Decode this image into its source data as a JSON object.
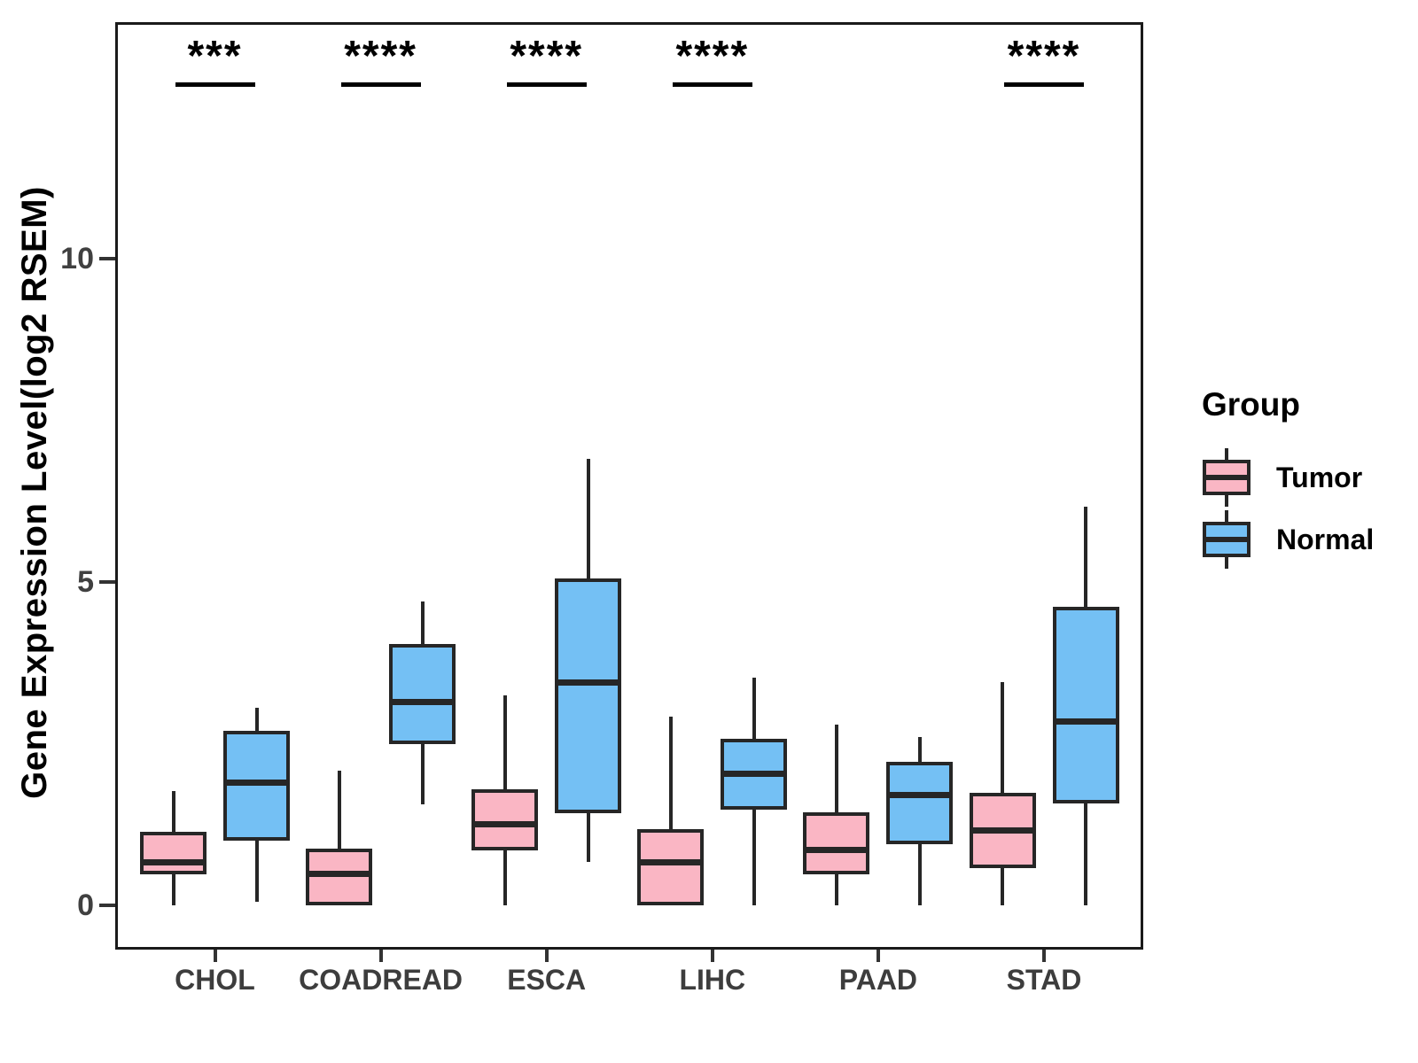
{
  "chart_data": {
    "type": "grouped_boxplot",
    "title": "",
    "xlabel": "",
    "ylabel": "Gene Expression Level(log2 RSEM)",
    "categories": [
      "CHOL",
      "COADREAD",
      "ESCA",
      "LIHC",
      "PAAD",
      "STAD"
    ],
    "yticks": [
      0,
      5,
      10
    ],
    "ylim": [
      -0.7,
      13.7
    ],
    "grid": false,
    "legend": {
      "title": "Group",
      "position": "right",
      "entries": [
        {
          "label": "Tumor",
          "color": "#FAB6C4"
        },
        {
          "label": "Normal",
          "color": "#74C0F4"
        }
      ]
    },
    "significance": [
      {
        "category": "CHOL",
        "stars": "***"
      },
      {
        "category": "COADREAD",
        "stars": "****"
      },
      {
        "category": "ESCA",
        "stars": "****"
      },
      {
        "category": "LIHC",
        "stars": "****"
      },
      {
        "category": "STAD",
        "stars": "****"
      }
    ],
    "series": [
      {
        "name": "Tumor",
        "color": "#FAB6C4",
        "boxes": [
          {
            "category": "CHOL",
            "min": 0,
            "q1": 0.48,
            "median": 0.67,
            "q3": 1.14,
            "max": 1.77
          },
          {
            "category": "COADREAD",
            "min": 0,
            "q1": 0,
            "median": 0.48,
            "q3": 0.88,
            "max": 2.08
          },
          {
            "category": "ESCA",
            "min": 0,
            "q1": 0.85,
            "median": 1.25,
            "q3": 1.8,
            "max": 3.25
          },
          {
            "category": "LIHC",
            "min": 0,
            "q1": 0,
            "median": 0.66,
            "q3": 1.18,
            "max": 2.92
          },
          {
            "category": "PAAD",
            "min": 0,
            "q1": 0.48,
            "median": 0.85,
            "q3": 1.44,
            "max": 2.79
          },
          {
            "category": "STAD",
            "min": 0,
            "q1": 0.58,
            "median": 1.16,
            "q3": 1.74,
            "max": 3.45
          }
        ]
      },
      {
        "name": "Normal",
        "color": "#74C0F4",
        "boxes": [
          {
            "category": "CHOL",
            "min": 0.05,
            "q1": 1.0,
            "median": 1.9,
            "q3": 2.7,
            "max": 3.05
          },
          {
            "category": "COADREAD",
            "min": 1.56,
            "q1": 2.49,
            "median": 3.14,
            "q3": 4.04,
            "max": 4.7
          },
          {
            "category": "ESCA",
            "min": 0.67,
            "q1": 1.42,
            "median": 3.45,
            "q3": 5.05,
            "max": 6.9
          },
          {
            "category": "LIHC",
            "min": 0,
            "q1": 1.48,
            "median": 2.03,
            "q3": 2.58,
            "max": 3.52
          },
          {
            "category": "PAAD",
            "min": 0,
            "q1": 0.95,
            "median": 1.71,
            "q3": 2.22,
            "max": 2.6
          },
          {
            "category": "STAD",
            "min": 0,
            "q1": 1.58,
            "median": 2.84,
            "q3": 4.62,
            "max": 6.16
          }
        ]
      }
    ],
    "style_colors": {
      "tumor_fill": "#FAB6C4",
      "normal_fill": "#74C0F4",
      "box_border": "#262626",
      "panel_border": "#1a1a1a",
      "axis_text": "#404040",
      "annotation": "#000000"
    }
  }
}
